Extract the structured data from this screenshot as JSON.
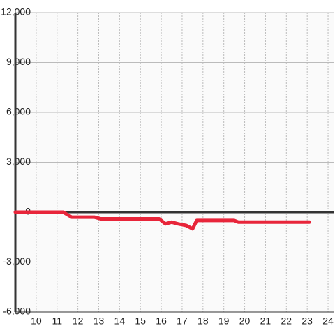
{
  "chart_data": {
    "type": "line",
    "x": [
      9,
      11.3,
      11.7,
      12.8,
      13.1,
      15.9,
      16.2,
      16.5,
      16.8,
      17.2,
      17.5,
      17.7,
      19.5,
      19.7,
      23.1
    ],
    "series": [
      {
        "color": "#e8253a",
        "values": [
          0,
          0,
          -300,
          -300,
          -400,
          -400,
          -700,
          -600,
          -700,
          -800,
          -1000,
          -500,
          -500,
          -600,
          -600
        ]
      }
    ],
    "xlim": [
      9,
      24.3
    ],
    "xticks": [
      10,
      11,
      12,
      13,
      14,
      15,
      16,
      17,
      18,
      19,
      20,
      21,
      22,
      23,
      24
    ],
    "ylim": [
      -6000,
      12000
    ],
    "yticks": [
      {
        "value": -6000,
        "label": "-6,000"
      },
      {
        "value": -3000,
        "label": "-3,000"
      },
      0,
      {
        "value": 3000,
        "label": "3,000"
      },
      {
        "value": 6000,
        "label": "6,000"
      },
      {
        "value": 9000,
        "label": "9,000"
      },
      {
        "value": 12000,
        "label": "12,000"
      }
    ],
    "grid": true
  }
}
